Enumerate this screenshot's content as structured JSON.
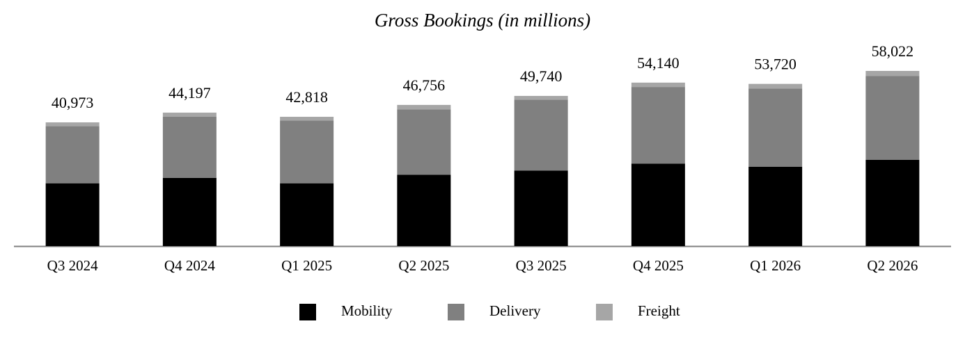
{
  "chart_data": {
    "type": "stacked_bar",
    "title": "Gross Bookings (in millions)",
    "categories": [
      "Q3 2024",
      "Q4 2024",
      "Q1 2025",
      "Q2 2025",
      "Q3 2025",
      "Q4 2025",
      "Q1 2026",
      "Q2 2026"
    ],
    "series": [
      {
        "name": "Mobility",
        "color": "#000000",
        "values": [
          20800,
          22600,
          20800,
          23600,
          25000,
          27300,
          26300,
          28600
        ]
      },
      {
        "name": "Delivery",
        "color": "#808080",
        "values": [
          18900,
          20300,
          20800,
          21700,
          23500,
          25400,
          25900,
          27700
        ]
      },
      {
        "name": "Freight",
        "color": "#a6a6a6",
        "values": [
          1273,
          1297,
          1218,
          1456,
          1240,
          1440,
          1520,
          1722
        ]
      }
    ],
    "totals": [
      40973,
      44197,
      42818,
      46756,
      49740,
      54140,
      53720,
      58022
    ],
    "value_labels": [
      "40,973",
      "44,197",
      "42,818",
      "46,756",
      "49,740",
      "54,140",
      "53,720",
      "58,022"
    ]
  }
}
